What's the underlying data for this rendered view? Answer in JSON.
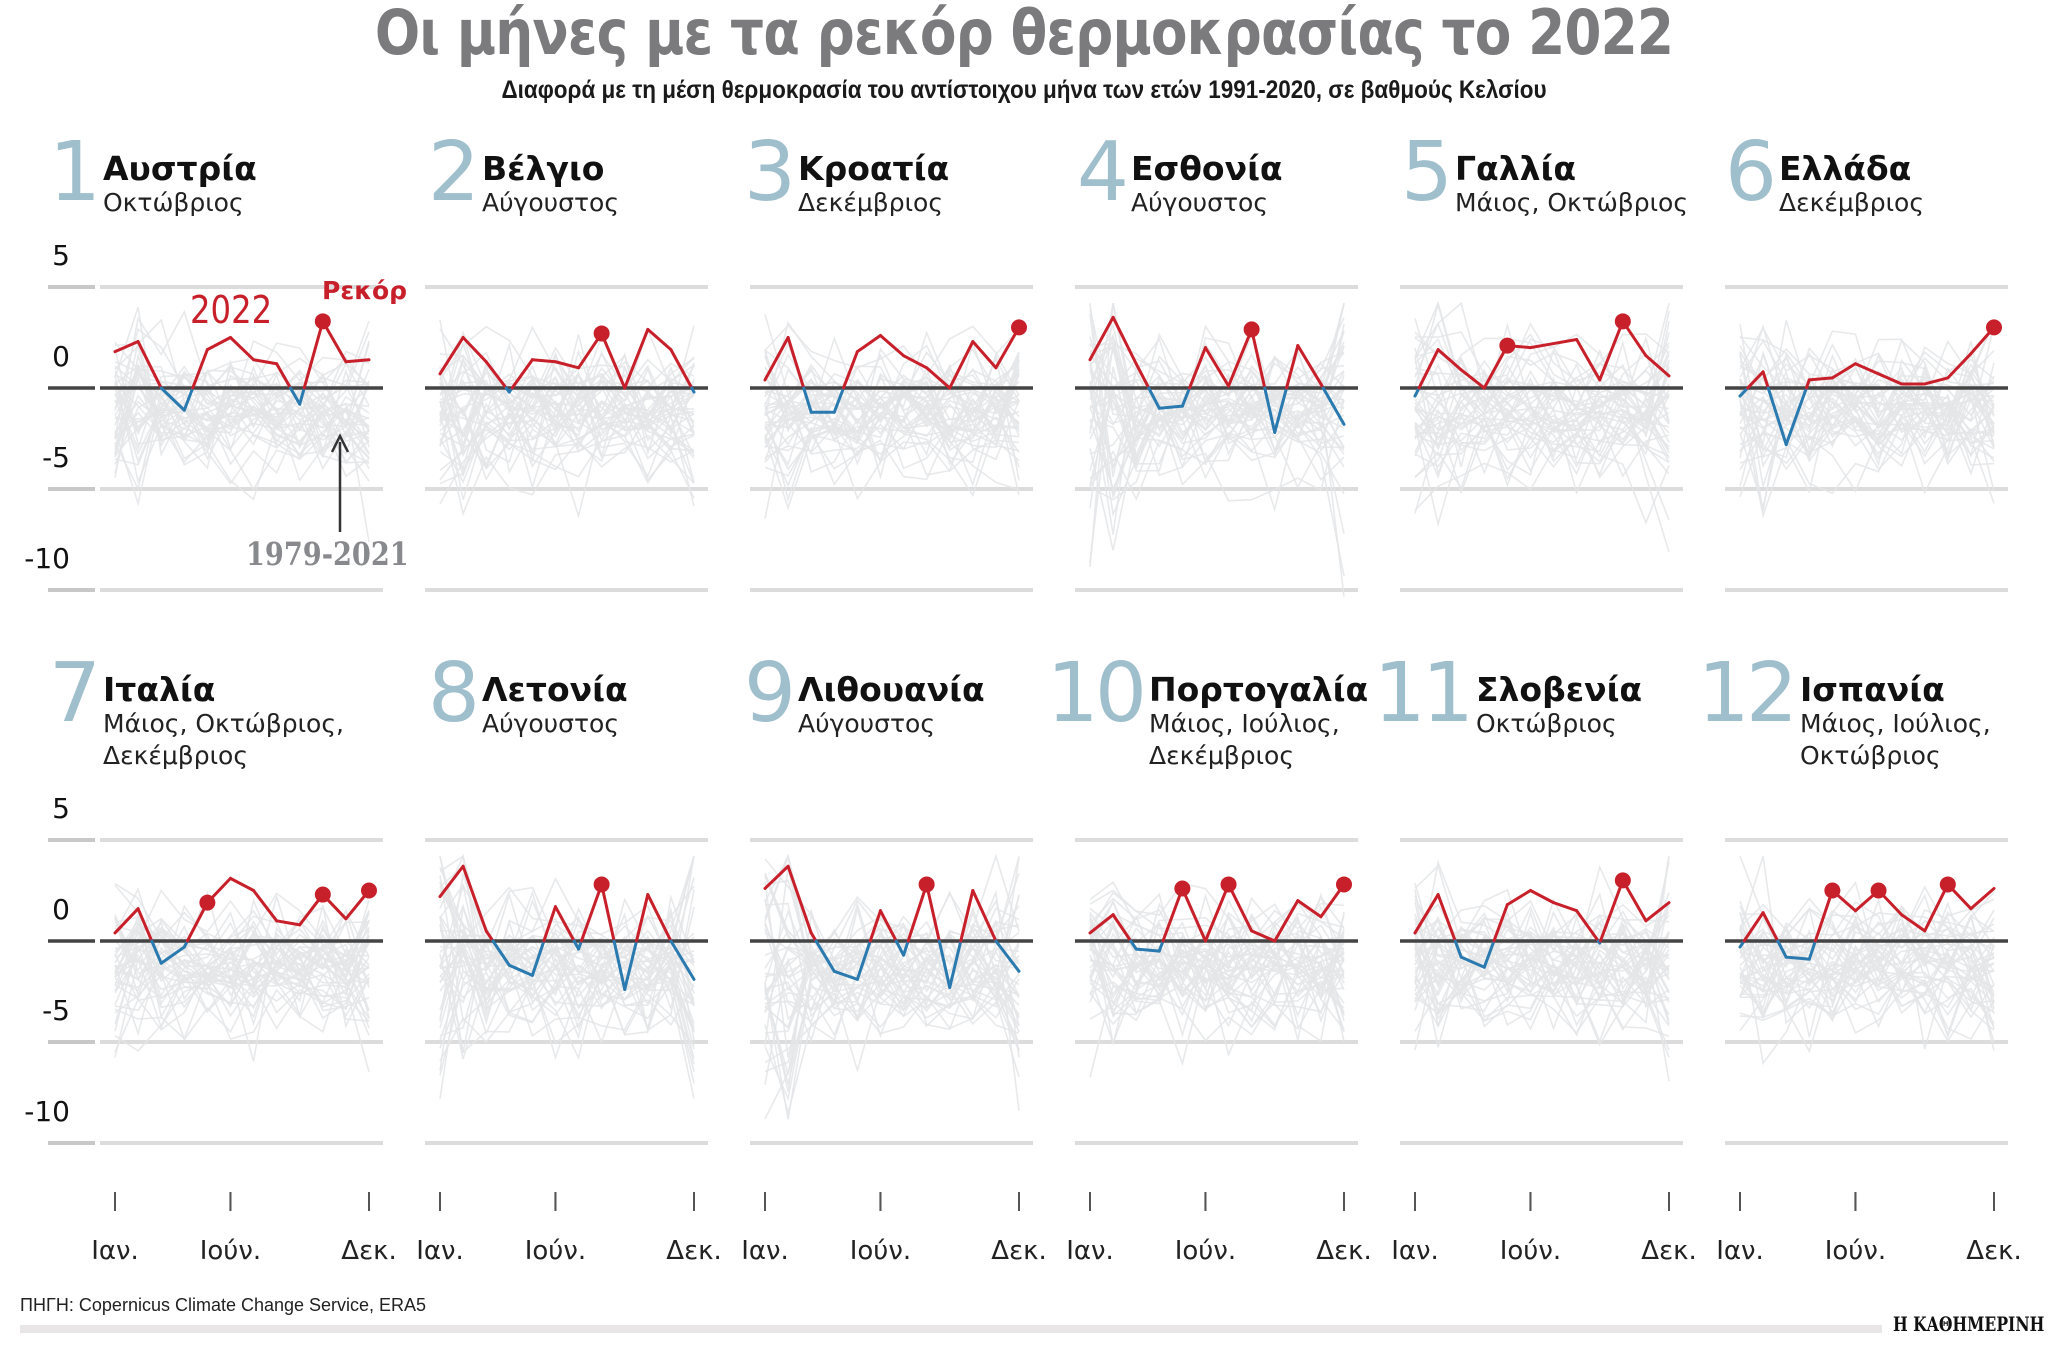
{
  "title": "Οι μήνες με τα ρεκόρ θερμοκρασίας το 2022",
  "subtitle": "Διαφορά με τη μέση θερμοκρασία του αντίστοιχου μήνα των ετών 1991-2020, σε βαθμούς Κελσίου",
  "annotations": {
    "year_label": "2022",
    "record_label": "Ρεκόρ",
    "range_label": "1979-2021"
  },
  "source": "ΠΗΓΗ: Copernicus Climate Change Service, ERA5",
  "logo": "Η ΚΑΘΗΜΕΡΙΝΗ",
  "colors": {
    "above_zero": "#c8202b",
    "below_zero": "#2a7ab0",
    "record_dot": "#c8202b",
    "history_lines": "#e4e5e8",
    "zero_line": "#444444",
    "gridline": "#dcdcdc",
    "rank_number": "#9fbfcc",
    "title": "#7b7b7d"
  },
  "y_axis": {
    "ticks": [
      "5",
      "0",
      "-5",
      "-10"
    ],
    "ylim": [
      -10,
      5
    ],
    "gridlines": true
  },
  "x_axis": {
    "ticks": [
      "Ιαν.",
      "Ιούν.",
      "Δεκ."
    ],
    "tick_months": [
      1,
      6,
      12
    ]
  },
  "chart_data": [
    {
      "type": "line",
      "rank": "1",
      "title": "Αυστρία",
      "subtitle": "Οκτώβριος",
      "x": [
        1,
        2,
        3,
        4,
        5,
        6,
        7,
        8,
        9,
        10,
        11,
        12
      ],
      "values": [
        1.8,
        2.3,
        0.0,
        -1.1,
        1.9,
        2.5,
        1.4,
        1.2,
        -0.8,
        3.3,
        1.3,
        1.4
      ],
      "record_months": [
        10
      ]
    },
    {
      "type": "line",
      "rank": "2",
      "title": "Βέλγιο",
      "subtitle": "Αύγουστος",
      "x": [
        1,
        2,
        3,
        4,
        5,
        6,
        7,
        8,
        9,
        10,
        11,
        12
      ],
      "values": [
        0.7,
        2.5,
        1.3,
        -0.2,
        1.4,
        1.3,
        1.0,
        2.7,
        0.0,
        2.9,
        1.9,
        -0.2
      ],
      "record_months": [
        8
      ]
    },
    {
      "type": "line",
      "rank": "3",
      "title": "Κροατία",
      "subtitle": "Δεκέμβριος",
      "x": [
        1,
        2,
        3,
        4,
        5,
        6,
        7,
        8,
        9,
        10,
        11,
        12
      ],
      "values": [
        0.4,
        2.5,
        -1.2,
        -1.2,
        1.8,
        2.6,
        1.6,
        1.0,
        0.0,
        2.3,
        1.0,
        3.0
      ],
      "record_months": [
        12
      ]
    },
    {
      "type": "line",
      "rank": "4",
      "title": "Εσθονία",
      "subtitle": "Αύγουστος",
      "x": [
        1,
        2,
        3,
        4,
        5,
        6,
        7,
        8,
        9,
        10,
        11,
        12
      ],
      "values": [
        1.4,
        3.5,
        1.2,
        -1.0,
        -0.9,
        2.0,
        0.1,
        2.9,
        -2.2,
        2.1,
        0.2,
        -1.8
      ],
      "record_months": [
        8
      ]
    },
    {
      "type": "line",
      "rank": "5",
      "title": "Γαλλία",
      "subtitle": "Μάιος, Οκτώβριος",
      "x": [
        1,
        2,
        3,
        4,
        5,
        6,
        7,
        8,
        9,
        10,
        11,
        12
      ],
      "values": [
        -0.4,
        1.9,
        0.9,
        0.0,
        2.1,
        2.0,
        2.2,
        2.4,
        0.4,
        3.3,
        1.6,
        0.6
      ],
      "record_months": [
        5,
        10
      ]
    },
    {
      "type": "line",
      "rank": "6",
      "title": "Ελλάδα",
      "subtitle": "Δεκέμβριος",
      "x": [
        1,
        2,
        3,
        4,
        5,
        6,
        7,
        8,
        9,
        10,
        11,
        12
      ],
      "values": [
        -0.4,
        0.8,
        -2.8,
        0.4,
        0.5,
        1.2,
        0.7,
        0.2,
        0.2,
        0.5,
        1.7,
        3.0
      ],
      "record_months": [
        12
      ]
    },
    {
      "type": "line",
      "rank": "7",
      "title": "Ιταλία",
      "subtitle": "Μάιος, Οκτώβριος,\nΔεκέμβριος",
      "x": [
        1,
        2,
        3,
        4,
        5,
        6,
        7,
        8,
        9,
        10,
        11,
        12
      ],
      "values": [
        0.4,
        1.6,
        -1.1,
        -0.3,
        1.9,
        3.1,
        2.5,
        1.0,
        0.8,
        2.3,
        1.1,
        2.5
      ],
      "record_months": [
        5,
        10,
        12
      ]
    },
    {
      "type": "line",
      "rank": "8",
      "title": "Λετονία",
      "subtitle": "Αύγουστος",
      "x": [
        1,
        2,
        3,
        4,
        5,
        6,
        7,
        8,
        9,
        10,
        11,
        12
      ],
      "values": [
        2.2,
        3.7,
        0.5,
        -1.2,
        -1.7,
        1.7,
        -0.4,
        2.8,
        -2.4,
        2.3,
        0.0,
        -1.9
      ],
      "record_months": [
        8
      ]
    },
    {
      "type": "line",
      "rank": "9",
      "title": "Λιθουανία",
      "subtitle": "Αύγουστος",
      "x": [
        1,
        2,
        3,
        4,
        5,
        6,
        7,
        8,
        9,
        10,
        11,
        12
      ],
      "values": [
        2.6,
        3.7,
        0.4,
        -1.5,
        -1.9,
        1.5,
        -0.7,
        2.8,
        -2.3,
        2.5,
        0.0,
        -1.5
      ],
      "record_months": [
        8
      ]
    },
    {
      "type": "line",
      "rank": "10",
      "title": "Πορτογαλία",
      "subtitle": "Μάιος, Ιούλιος,\nΔεκέμβριος",
      "x": [
        1,
        2,
        3,
        4,
        5,
        6,
        7,
        8,
        9,
        10,
        11,
        12
      ],
      "values": [
        0.4,
        1.3,
        -0.4,
        -0.5,
        2.6,
        0.0,
        2.8,
        0.5,
        0.0,
        2.0,
        1.2,
        2.8
      ],
      "record_months": [
        5,
        7,
        12
      ]
    },
    {
      "type": "line",
      "rank": "11",
      "title": "Σλοβενία",
      "subtitle": "Οκτώβριος",
      "x": [
        1,
        2,
        3,
        4,
        5,
        6,
        7,
        8,
        9,
        10,
        11,
        12
      ],
      "values": [
        0.4,
        2.3,
        -0.8,
        -1.3,
        1.8,
        2.5,
        1.9,
        1.5,
        -0.1,
        3.0,
        1.0,
        1.9
      ],
      "record_months": [
        10
      ]
    },
    {
      "type": "line",
      "rank": "12",
      "title": "Ισπανία",
      "subtitle": "Μάιος, Ιούλιος,\nΟκτώβριος",
      "x": [
        1,
        2,
        3,
        4,
        5,
        6,
        7,
        8,
        9,
        10,
        11,
        12
      ],
      "values": [
        -0.3,
        1.4,
        -0.8,
        -0.9,
        2.5,
        1.5,
        2.5,
        1.3,
        0.5,
        2.8,
        1.6,
        2.6
      ],
      "record_months": [
        5,
        7,
        10
      ]
    }
  ]
}
